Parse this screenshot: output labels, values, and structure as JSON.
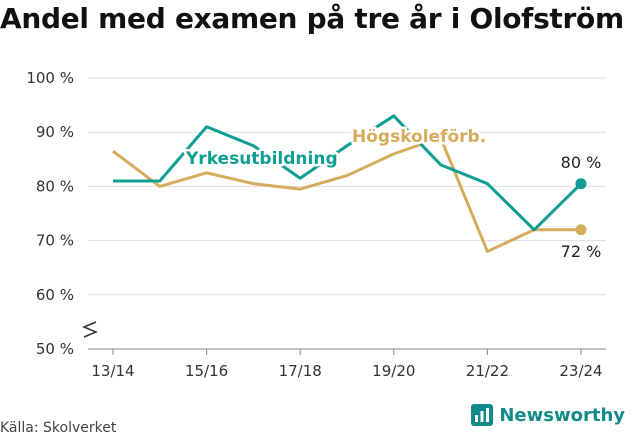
{
  "title": "Andel med examen på tre år i Olofström",
  "source": "Källa: Skolverket",
  "brand": "Newsworthy",
  "colors": {
    "yrke": "#0e9e92",
    "hogskole": "#d6ac5c",
    "grid": "#dddddd",
    "brand": "#138a8a"
  },
  "chart_data": {
    "type": "line",
    "x_ticks": [
      "13/14",
      "15/16",
      "17/18",
      "19/20",
      "21/22",
      "23/24"
    ],
    "y_ticks": [
      "50 %",
      "60 %",
      "70 %",
      "80 %",
      "90 %",
      "100 %"
    ],
    "ylim": [
      50,
      100
    ],
    "y_axis_break": true,
    "series": [
      {
        "name": "Yrkesutbildning",
        "color": "#0e9e92",
        "x": [
          "13/14",
          "14/15",
          "15/16",
          "16/17",
          "17/18",
          "18/19",
          "19/20",
          "20/21",
          "21/22",
          "22/23",
          "23/24"
        ],
        "values": [
          81,
          81,
          91,
          87.5,
          81.5,
          87.5,
          93,
          84,
          80.5,
          72,
          80.5
        ]
      },
      {
        "name": "Högskoleförb.",
        "color": "#d6ac5c",
        "x": [
          "13/14",
          "14/15",
          "15/16",
          "16/17",
          "17/18",
          "18/19",
          "19/20",
          "20/21",
          "21/22",
          "22/23",
          "23/24"
        ],
        "values": [
          86.5,
          80,
          82.5,
          80.5,
          79.5,
          82,
          86,
          89,
          68,
          72,
          72
        ]
      }
    ],
    "end_labels": [
      "80 %",
      "72 %"
    ]
  }
}
